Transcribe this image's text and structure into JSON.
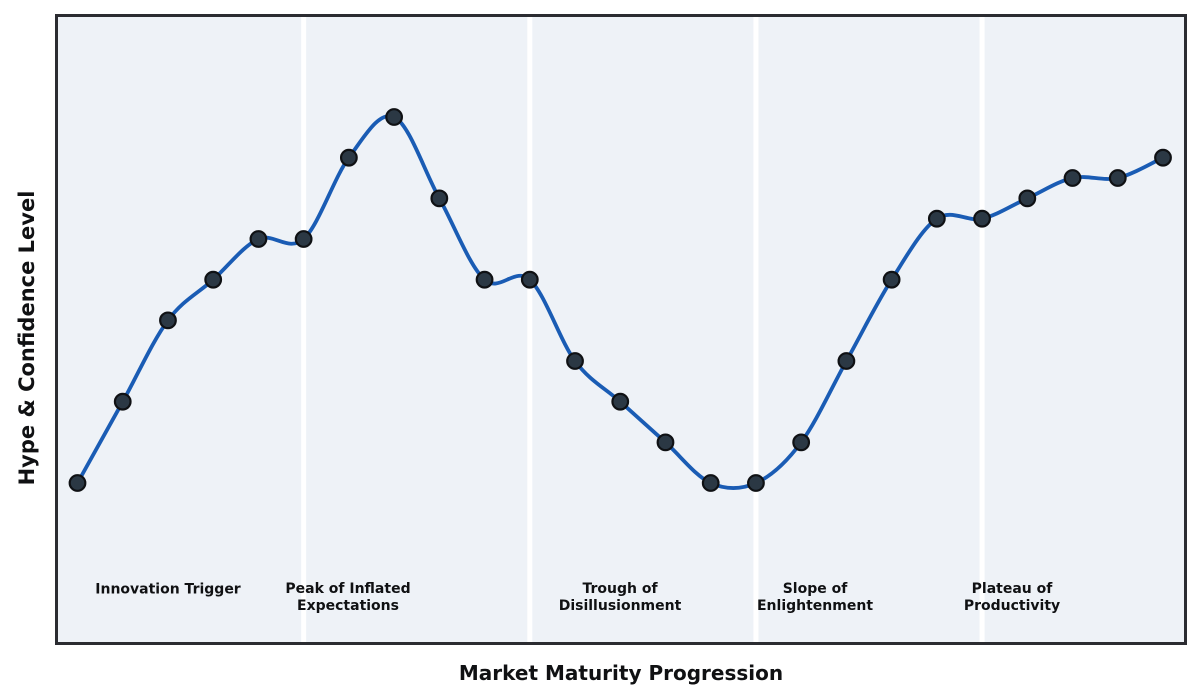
{
  "chart_data": {
    "type": "line",
    "title": "",
    "xlabel": "Market Maturity Progression",
    "ylabel": "Hype & Confidence Level",
    "x": [
      0,
      1,
      2,
      3,
      4,
      5,
      6,
      7,
      8,
      9,
      10,
      11,
      12,
      13,
      14,
      15,
      16,
      17,
      18,
      19,
      20,
      21,
      22,
      23,
      24
    ],
    "values": [
      20,
      30,
      40,
      45,
      50,
      50,
      60,
      65,
      55,
      45,
      45,
      35,
      30,
      25,
      20,
      20,
      25,
      35,
      45,
      52.5,
      52.5,
      55,
      57.5,
      57.5,
      60
    ],
    "xlim": [
      -0.45,
      24.5
    ],
    "ylim": [
      0,
      77.5
    ],
    "grid": false,
    "axis_ticks": "none",
    "legend": "none",
    "curve_style": "smooth-spline",
    "marker_style": "circle",
    "phase_boundaries_x": [
      5,
      10,
      15,
      20
    ],
    "phases": [
      {
        "label": "Innovation Trigger",
        "x_range": [
          0,
          5
        ]
      },
      {
        "label": "Peak of Inflated\nExpectations",
        "x_range": [
          5,
          10
        ]
      },
      {
        "label": "Trough of\nDisillusionment",
        "x_range": [
          10,
          15
        ]
      },
      {
        "label": "Slope of\nEnlightenment",
        "x_range": [
          15,
          20
        ]
      },
      {
        "label": "Plateau of\nProductivity",
        "x_range": [
          20,
          24
        ]
      }
    ],
    "colors": {
      "line": "#1a5cb4",
      "marker_fill": "#2b3844",
      "marker_edge": "#0f1114",
      "plot_bg": "#eef2f7",
      "border": "#2b2c31",
      "separator": "#ffffff",
      "text": "#101113",
      "figure_bg": "#ffffff"
    }
  }
}
